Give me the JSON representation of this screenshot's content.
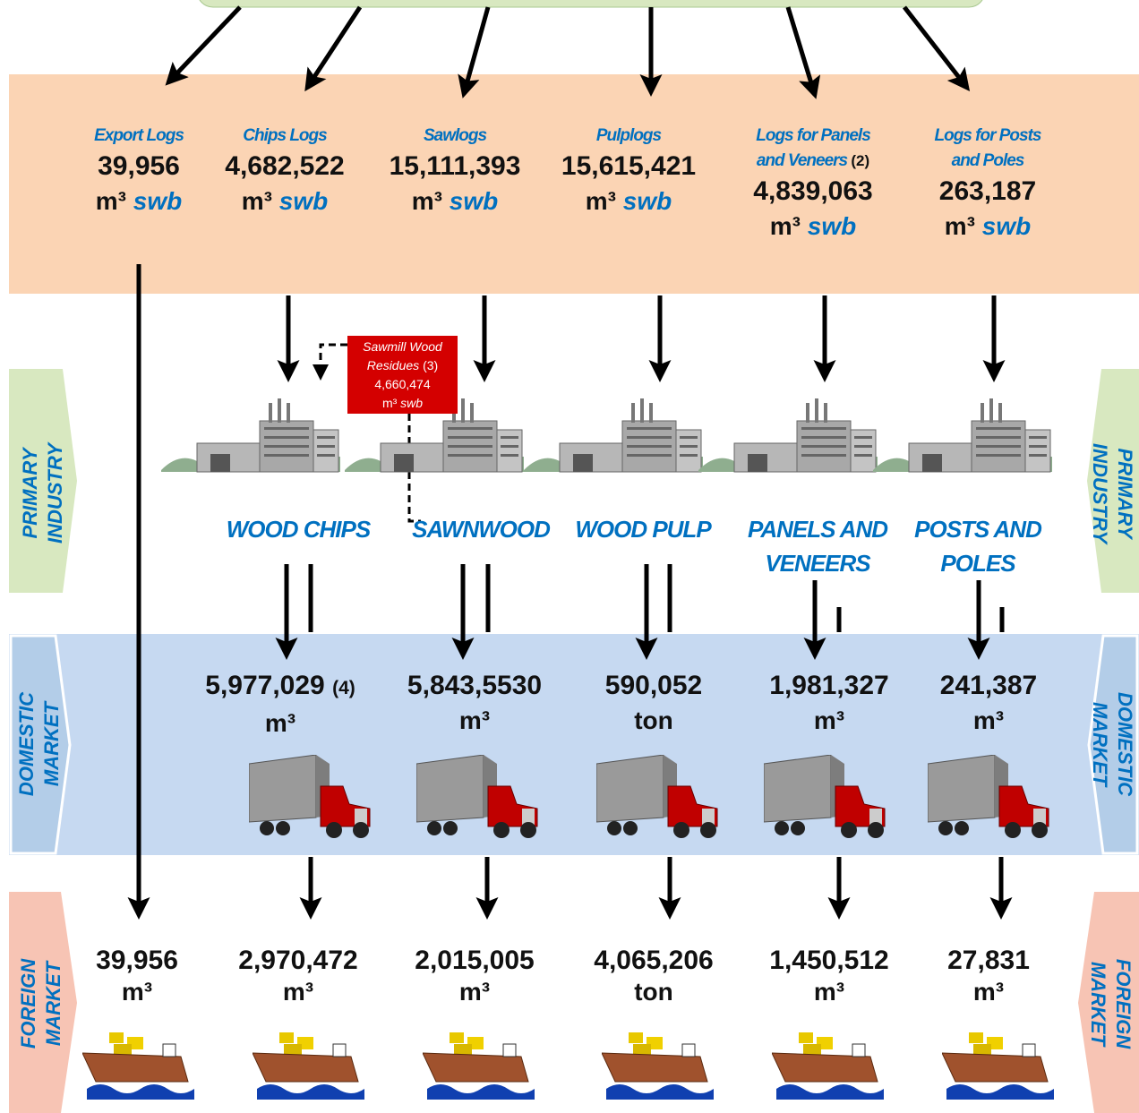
{
  "sections": {
    "primary_industry": "PRIMARY INDUSTRY",
    "domestic_market": "DOMESTIC MARKET",
    "foreign_market": "FOREIGN MARKET"
  },
  "log_types": [
    {
      "name": "Export Logs",
      "volume": "39,956",
      "unit": "m³",
      "qualifier": "swb"
    },
    {
      "name": "Chips Logs",
      "volume": "4,682,522",
      "unit": "m³",
      "qualifier": "swb"
    },
    {
      "name": "Sawlogs",
      "volume": "15,111,393",
      "unit": "m³",
      "qualifier": "swb"
    },
    {
      "name": "Pulplogs",
      "volume": "15,615,421",
      "unit": "m³",
      "qualifier": "swb"
    },
    {
      "name": "Logs for Panels and Veneers",
      "note": "(2)",
      "volume": "4,839,063",
      "unit": "m³",
      "qualifier": "swb"
    },
    {
      "name": "Logs for Posts and Poles",
      "volume": "263,187",
      "unit": "m³",
      "qualifier": "swb"
    }
  ],
  "residues": {
    "name": "Sawmill Wood Residues",
    "note": "(3)",
    "volume": "4,660,474",
    "unit": "m³",
    "qualifier": "swb"
  },
  "export_logs_foreign": {
    "volume": "39,956",
    "unit": "m³"
  },
  "products": [
    {
      "name": "WOOD CHIPS",
      "domestic": {
        "volume": "5,977,029",
        "note": "(4)",
        "unit": "m³"
      },
      "foreign": {
        "volume": "2,970,472",
        "unit": "m³"
      }
    },
    {
      "name": "SAWNWOOD",
      "domestic": {
        "volume": "5,843,5530",
        "unit": "m³"
      },
      "foreign": {
        "volume": "2,015,005",
        "unit": "m³"
      }
    },
    {
      "name": "WOOD PULP",
      "domestic": {
        "volume": "590,052",
        "unit": "ton"
      },
      "foreign": {
        "volume": "4,065,206",
        "unit": "ton"
      }
    },
    {
      "name": "PANELS AND VENEERS",
      "domestic": {
        "volume": "1,981,327",
        "unit": "m³"
      },
      "foreign": {
        "volume": "1,450,512",
        "unit": "m³"
      }
    },
    {
      "name": "POSTS AND POLES",
      "domestic": {
        "volume": "241,387",
        "unit": "m³"
      },
      "foreign": {
        "volume": "27,831",
        "unit": "m³"
      }
    }
  ]
}
